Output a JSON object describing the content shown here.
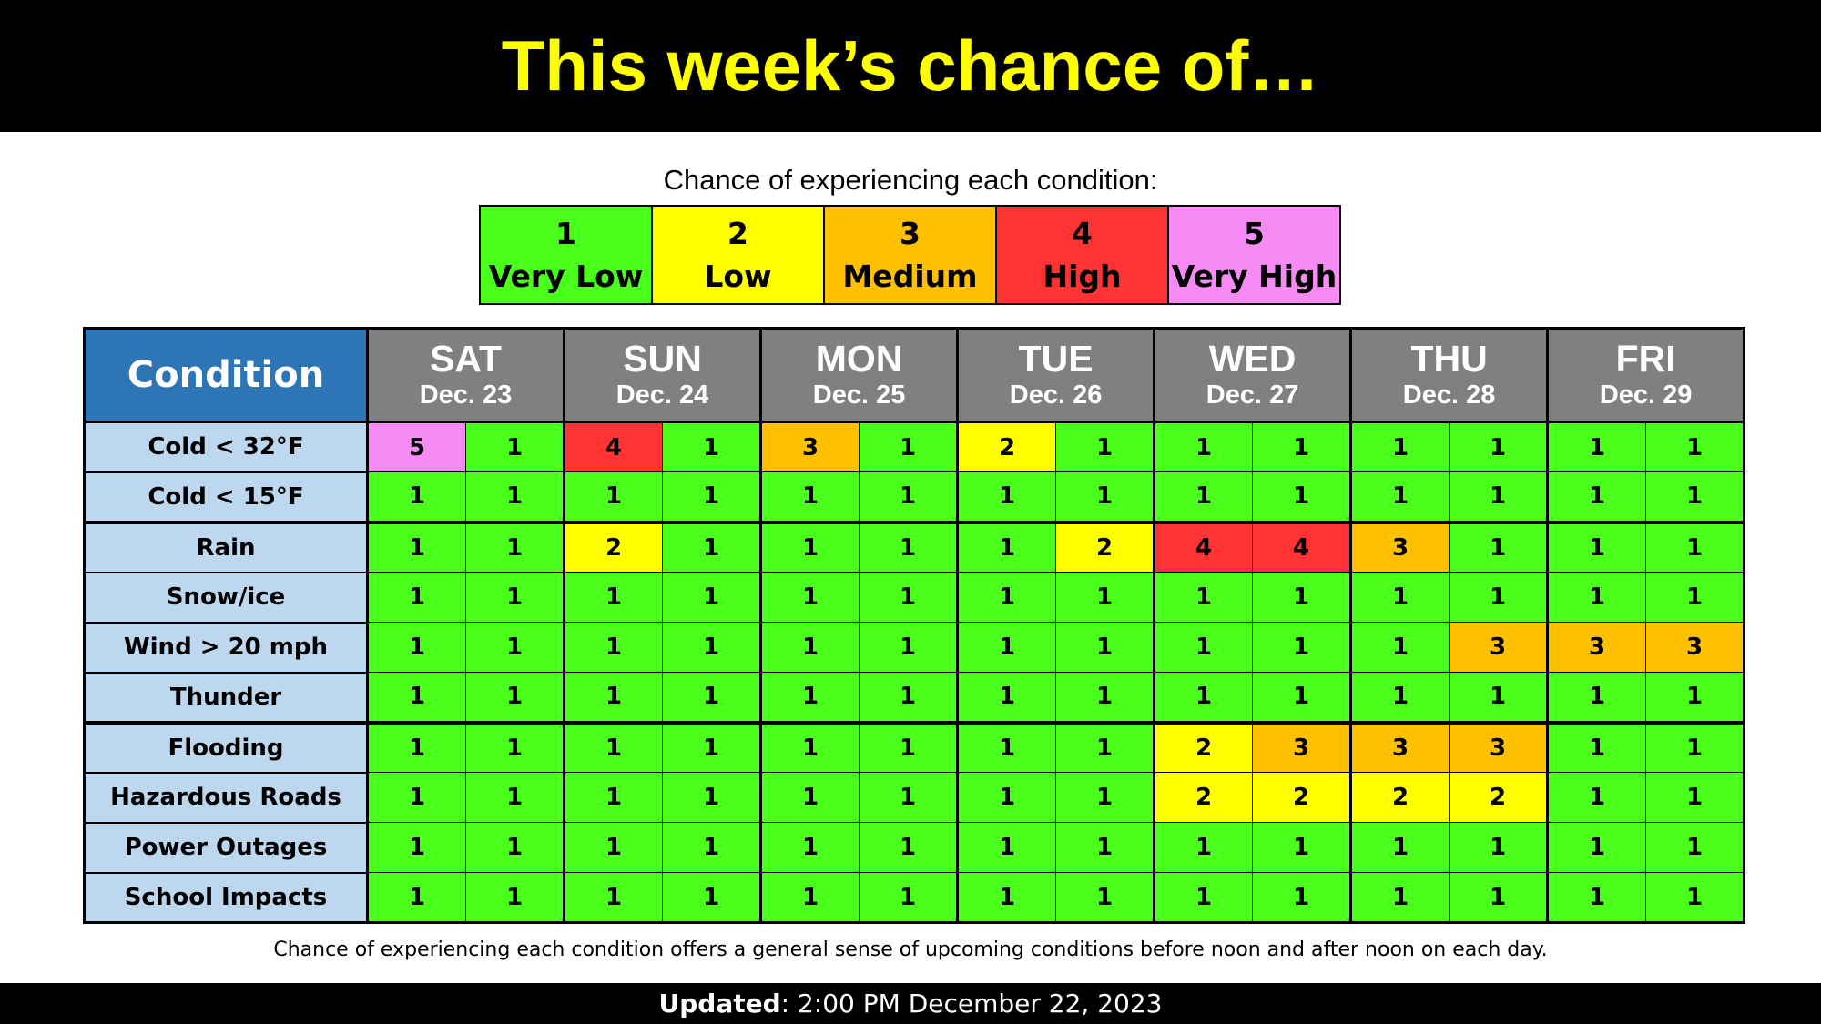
{
  "title": "This week’s chance of…",
  "legend": {
    "caption": "Chance of experiencing each condition:",
    "items": [
      {
        "value": "1",
        "label": "Very Low",
        "color": "#4aff1c"
      },
      {
        "value": "2",
        "label": "Low",
        "color": "#ffff00"
      },
      {
        "value": "3",
        "label": "Medium",
        "color": "#ffc000"
      },
      {
        "value": "4",
        "label": "High",
        "color": "#ff3333"
      },
      {
        "value": "5",
        "label": "Very High",
        "color": "#f68bf6"
      }
    ]
  },
  "grid": {
    "condition_header": "Condition",
    "header_color": "#2e75b6",
    "day_header_color": "#808080",
    "label_color": "#bdd7ee",
    "days": [
      {
        "name": "SAT",
        "date": "Dec. 23"
      },
      {
        "name": "SUN",
        "date": "Dec. 24"
      },
      {
        "name": "MON",
        "date": "Dec. 25"
      },
      {
        "name": "TUE",
        "date": "Dec. 26"
      },
      {
        "name": "WED",
        "date": "Dec. 27"
      },
      {
        "name": "THU",
        "date": "Dec. 28"
      },
      {
        "name": "FRI",
        "date": "Dec. 29"
      }
    ],
    "rows": [
      {
        "label": "Cold  < 32°F",
        "values": [
          5,
          1,
          4,
          1,
          3,
          1,
          2,
          1,
          1,
          1,
          1,
          1,
          1,
          1
        ]
      },
      {
        "label": "Cold  < 15°F",
        "values": [
          1,
          1,
          1,
          1,
          1,
          1,
          1,
          1,
          1,
          1,
          1,
          1,
          1,
          1
        ]
      },
      {
        "label": "Rain",
        "values": [
          1,
          1,
          2,
          1,
          1,
          1,
          1,
          2,
          4,
          4,
          3,
          1,
          1,
          1
        ]
      },
      {
        "label": "Snow/ice",
        "values": [
          1,
          1,
          1,
          1,
          1,
          1,
          1,
          1,
          1,
          1,
          1,
          1,
          1,
          1
        ]
      },
      {
        "label": "Wind > 20 mph",
        "values": [
          1,
          1,
          1,
          1,
          1,
          1,
          1,
          1,
          1,
          1,
          1,
          3,
          3,
          3
        ]
      },
      {
        "label": "Thunder",
        "values": [
          1,
          1,
          1,
          1,
          1,
          1,
          1,
          1,
          1,
          1,
          1,
          1,
          1,
          1
        ]
      },
      {
        "label": "Flooding",
        "values": [
          1,
          1,
          1,
          1,
          1,
          1,
          1,
          1,
          2,
          3,
          3,
          3,
          1,
          1
        ]
      },
      {
        "label": "Hazardous Roads",
        "values": [
          1,
          1,
          1,
          1,
          1,
          1,
          1,
          1,
          2,
          2,
          2,
          2,
          1,
          1
        ]
      },
      {
        "label": "Power Outages",
        "values": [
          1,
          1,
          1,
          1,
          1,
          1,
          1,
          1,
          1,
          1,
          1,
          1,
          1,
          1
        ]
      },
      {
        "label": "School Impacts",
        "values": [
          1,
          1,
          1,
          1,
          1,
          1,
          1,
          1,
          1,
          1,
          1,
          1,
          1,
          1
        ]
      }
    ]
  },
  "footnote": "Chance of experiencing each condition offers a general sense of upcoming conditions before noon and after noon on each day.",
  "updated": {
    "label": "Updated",
    "text": ": 2:00 PM December 22, 2023"
  }
}
